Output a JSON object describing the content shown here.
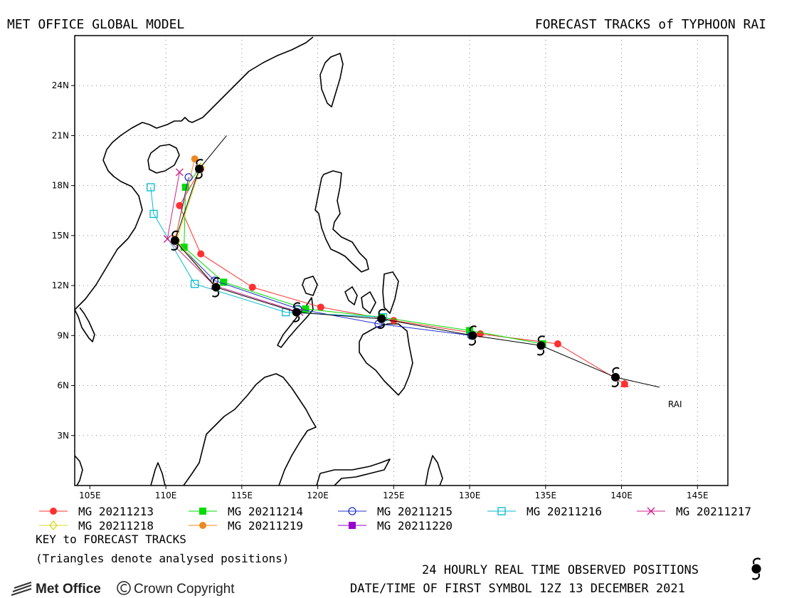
{
  "header": {
    "left_title": "MET OFFICE GLOBAL MODEL",
    "right_title": "FORECAST TRACKS of TYPHOON RAI"
  },
  "chart_data": {
    "type": "map",
    "lon_range": [
      104,
      147
    ],
    "lat_range": [
      0,
      27
    ],
    "lon_ticks": [
      "105E",
      "110E",
      "115E",
      "120E",
      "125E",
      "130E",
      "135E",
      "140E",
      "145E"
    ],
    "lat_ticks": [
      "3N",
      "6N",
      "9N",
      "12N",
      "15N",
      "18N",
      "21N",
      "24N"
    ],
    "storm_label": "RAI",
    "observed_track": [
      [
        142.5,
        5.9
      ],
      [
        139.6,
        6.5
      ],
      [
        134.7,
        8.4
      ],
      [
        130.2,
        9.0
      ],
      [
        124.2,
        10.0
      ],
      [
        118.6,
        10.4
      ],
      [
        113.3,
        11.9
      ],
      [
        110.6,
        14.7
      ],
      [
        112.2,
        19.0
      ],
      [
        114.0,
        21.0
      ]
    ],
    "observed_positions": [
      [
        139.6,
        6.5
      ],
      [
        134.7,
        8.4
      ],
      [
        130.2,
        9.0
      ],
      [
        124.2,
        10.0
      ],
      [
        118.6,
        10.4
      ],
      [
        113.3,
        11.9
      ],
      [
        110.6,
        14.7
      ],
      [
        112.2,
        19.0
      ]
    ],
    "analysed_triangle": [
      140.2,
      6.1
    ],
    "series": [
      {
        "name": "MG 20211213",
        "color": "#ff3030",
        "marker": "dot",
        "points": [
          [
            140.2,
            6.1
          ],
          [
            135.8,
            8.5
          ],
          [
            130.7,
            9.1
          ],
          [
            125.0,
            9.9
          ],
          [
            120.2,
            10.7
          ],
          [
            115.7,
            11.9
          ],
          [
            112.3,
            13.9
          ],
          [
            110.9,
            16.8
          ],
          [
            112.3,
            19.0
          ]
        ]
      },
      {
        "name": "MG 20211214",
        "color": "#00dd00",
        "marker": "square",
        "points": [
          [
            134.8,
            8.5
          ],
          [
            130.0,
            9.3
          ],
          [
            124.2,
            10.1
          ],
          [
            119.2,
            10.6
          ],
          [
            113.8,
            12.2
          ],
          [
            111.2,
            14.3
          ],
          [
            111.3,
            17.9
          ],
          [
            112.2,
            19.0
          ]
        ]
      },
      {
        "name": "MG 20211215",
        "color": "#2030d0",
        "marker": "circle",
        "points": [
          [
            130.1,
            9.0
          ],
          [
            124.0,
            9.7
          ],
          [
            118.7,
            10.6
          ],
          [
            113.2,
            12.3
          ],
          [
            110.6,
            14.7
          ],
          [
            111.5,
            18.5
          ]
        ]
      },
      {
        "name": "MG 20211216",
        "color": "#00bbcc",
        "marker": "square-open",
        "points": [
          [
            124.3,
            10.1
          ],
          [
            117.9,
            10.4
          ],
          [
            111.9,
            12.1
          ],
          [
            109.2,
            16.3
          ],
          [
            109.0,
            17.9
          ]
        ]
      },
      {
        "name": "MG 20211217",
        "color": "#d0208a",
        "marker": "cross",
        "points": [
          [
            118.8,
            10.4
          ],
          [
            113.2,
            12.0
          ],
          [
            110.1,
            14.8
          ],
          [
            110.9,
            18.8
          ]
        ]
      },
      {
        "name": "MG 20211218",
        "color": "#d8d820",
        "marker": "diamond",
        "points": [
          [
            113.3,
            11.9
          ],
          [
            110.7,
            14.7
          ],
          [
            112.3,
            19.1
          ]
        ]
      },
      {
        "name": "MG 20211219",
        "color": "#ee8822",
        "marker": "dot",
        "points": [
          [
            110.6,
            14.8
          ],
          [
            111.9,
            19.6
          ]
        ]
      },
      {
        "name": "MG 20211220",
        "color": "#9900cc",
        "marker": "square",
        "points": [
          [
            112.2,
            19.0
          ]
        ]
      }
    ]
  },
  "legend": {
    "key_line": "KEY to FORECAST TRACKS",
    "note": "(Triangles denote analysed positions)"
  },
  "footer": {
    "observed": "24 HOURLY REAL TIME OBSERVED POSITIONS",
    "first_symbol": "DATE/TIME OF FIRST SYMBOL 12Z 13 DECEMBER 2021",
    "logo": "Met Office",
    "copyright": "Crown Copyright"
  }
}
